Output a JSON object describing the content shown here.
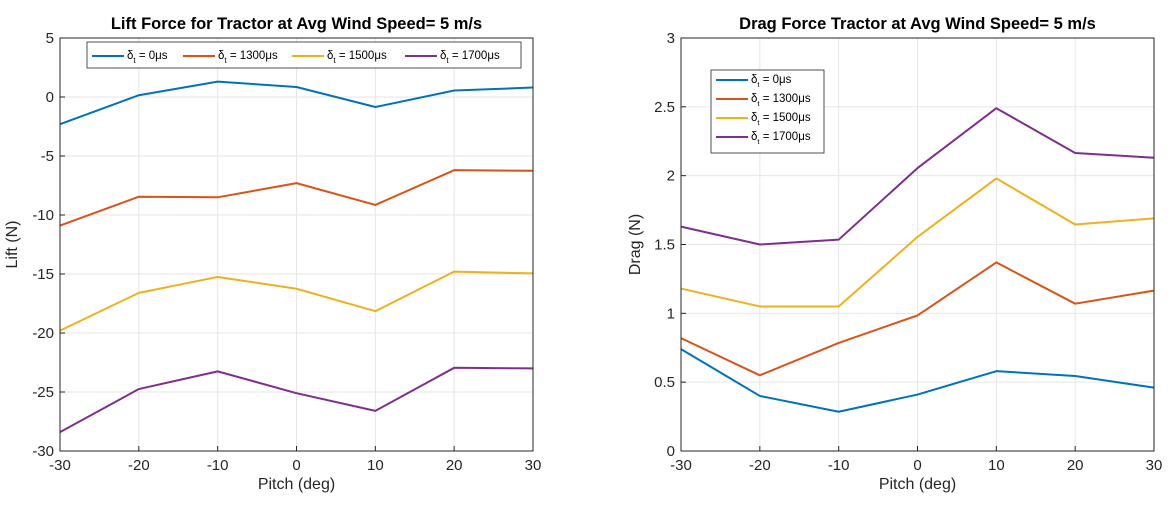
{
  "chart_data": [
    {
      "type": "line",
      "title": "Lift Force for Tractor at Avg Wind Speed= 5 m/s",
      "xlabel": "Pitch (deg)",
      "ylabel": "Lift (N)",
      "xlim": [
        -30,
        30
      ],
      "ylim": [
        -30,
        5
      ],
      "xticks": [
        "-30",
        "-20",
        "-10",
        "0",
        "10",
        "20",
        "30"
      ],
      "yticks": [
        "-30",
        "-25",
        "-20",
        "-15",
        "-10",
        "-5",
        "0",
        "5"
      ],
      "grid": true,
      "legend_position": "top, horizontal",
      "x": [
        -30,
        -20,
        -10,
        0,
        10,
        20,
        30
      ],
      "series": [
        {
          "name_symbol": "δ",
          "name_sub": "t",
          "name_value": " = 0μs",
          "color": "#0072BD",
          "values": [
            -2.3,
            0.15,
            1.3,
            0.85,
            -0.85,
            0.55,
            0.8
          ]
        },
        {
          "name_symbol": "δ",
          "name_sub": "t",
          "name_value": " = 1300μs",
          "color": "#D95319",
          "values": [
            -10.9,
            -8.45,
            -8.5,
            -7.3,
            -9.15,
            -6.2,
            -6.25
          ]
        },
        {
          "name_symbol": "δ",
          "name_sub": "t",
          "name_value": " = 1500μs",
          "color": "#EDB120",
          "values": [
            -19.8,
            -16.6,
            -15.25,
            -16.25,
            -18.15,
            -14.8,
            -14.95
          ]
        },
        {
          "name_symbol": "δ",
          "name_sub": "t",
          "name_value": " = 1700μs",
          "color": "#7E2F8E",
          "values": [
            -28.4,
            -24.75,
            -23.25,
            -25.1,
            -26.6,
            -22.95,
            -23.0
          ]
        }
      ]
    },
    {
      "type": "line",
      "title": "Drag Force Tractor at Avg Wind Speed= 5 m/s",
      "xlabel": "Pitch (deg)",
      "ylabel": "Drag (N)",
      "xlim": [
        -30,
        30
      ],
      "ylim": [
        0,
        3
      ],
      "xticks": [
        "-30",
        "-20",
        "-10",
        "0",
        "10",
        "20",
        "30"
      ],
      "yticks": [
        "0",
        "0.5",
        "1",
        "1.5",
        "2",
        "2.5",
        "3"
      ],
      "grid": true,
      "legend_position": "top-left, vertical",
      "x": [
        -30,
        -20,
        -10,
        0,
        10,
        20,
        30
      ],
      "series": [
        {
          "name_symbol": "δ",
          "name_sub": "t",
          "name_value": " = 0μs",
          "color": "#0072BD",
          "values": [
            0.74,
            0.4,
            0.285,
            0.41,
            0.58,
            0.545,
            0.46
          ]
        },
        {
          "name_symbol": "δ",
          "name_sub": "t",
          "name_value": " = 1300μs",
          "color": "#D95319",
          "values": [
            0.82,
            0.55,
            0.785,
            0.985,
            1.37,
            1.07,
            1.165
          ]
        },
        {
          "name_symbol": "δ",
          "name_sub": "t",
          "name_value": " = 1500μs",
          "color": "#EDB120",
          "values": [
            1.18,
            1.05,
            1.05,
            1.555,
            1.98,
            1.645,
            1.69
          ]
        },
        {
          "name_symbol": "δ",
          "name_sub": "t",
          "name_value": " = 1700μs",
          "color": "#7E2F8E",
          "values": [
            1.63,
            1.5,
            1.535,
            2.055,
            2.49,
            2.165,
            2.13
          ]
        }
      ]
    }
  ]
}
